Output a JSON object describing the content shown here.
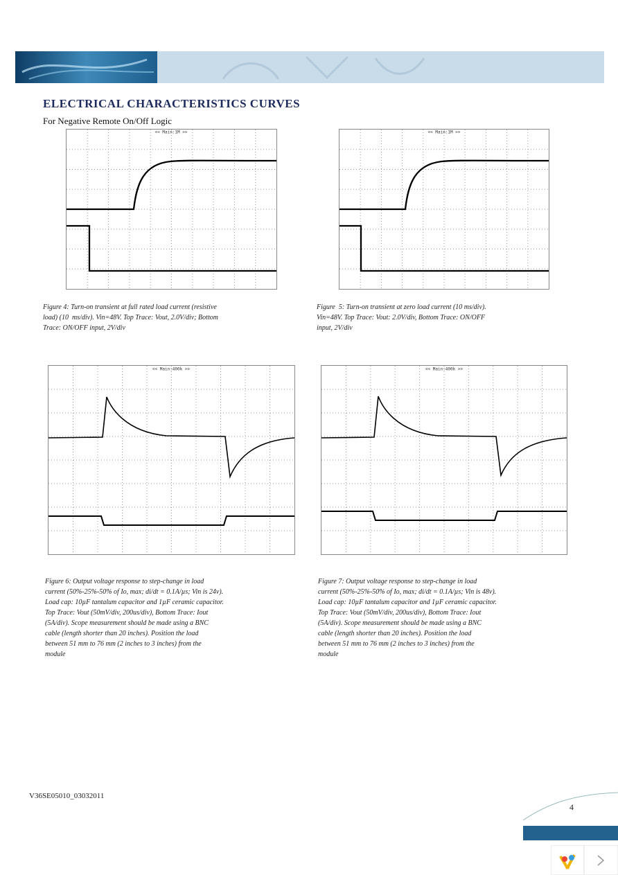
{
  "header": {
    "title": "ELECTRICAL CHARACTERISTICS CURVES",
    "subtitle": "For Negative Remote On/Off Logic"
  },
  "figures": [
    {
      "scope_label": "<< Main:1M >>",
      "caption": [
        "Figure 4: Turn-on transient at full rated load current (resistive",
        "load) (10  ms/div). Vin=48V. Top Trace: Vout, 2.0V/div; Bottom",
        "Trace: ON/OFF input, 2V/div"
      ]
    },
    {
      "scope_label": "<< Main:1M >>",
      "caption": [
        "Figure  5: Turn-on transient at zero load current (10 ms/div).",
        "Vin=48V. Top Trace: Vout: 2.0V/div, Bottom Trace: ON/OFF",
        "input, 2V/div"
      ]
    },
    {
      "scope_label": "<< Main:400k >>",
      "caption": [
        "Figure 6: Output voltage response to step-change in load",
        "current (50%-25%-50% of Io, max; di/dt = 0.1A/µs; Vin is 24v).",
        "Load cap: 10µF tantalum capacitor and 1µF ceramic capacitor.",
        "Top Trace: Vout (50mV/div, 200us/div), Bottom Trace: Iout",
        "(5A/div). Scope measurement should be made using a BNC",
        "cable (length shorter than 20 inches). Position the load",
        "between 51 mm to 76 mm (2 inches to 3 inches) from the",
        "module"
      ]
    },
    {
      "scope_label": "<< Main:400k >>",
      "caption": [
        "Figure 7: Output voltage response to step-change in load",
        "current (50%-25%-50% of Io, max; di/dt = 0.1A/µs; Vin is 48v).",
        "Load cap: 10µF tantalum capacitor and 1µF ceramic capacitor.",
        "Top Trace: Vout (50mV/div, 200us/div), Bottom Trace: Iout",
        "(5A/div). Scope measurement should be made using a BNC",
        "cable (length shorter than 20 inches). Position the load",
        "between 51 mm to 76 mm (2 inches to 3 inches) from the",
        "module"
      ]
    }
  ],
  "footer": {
    "doc_id": "V36SE05010_03032011",
    "page": "4"
  }
}
